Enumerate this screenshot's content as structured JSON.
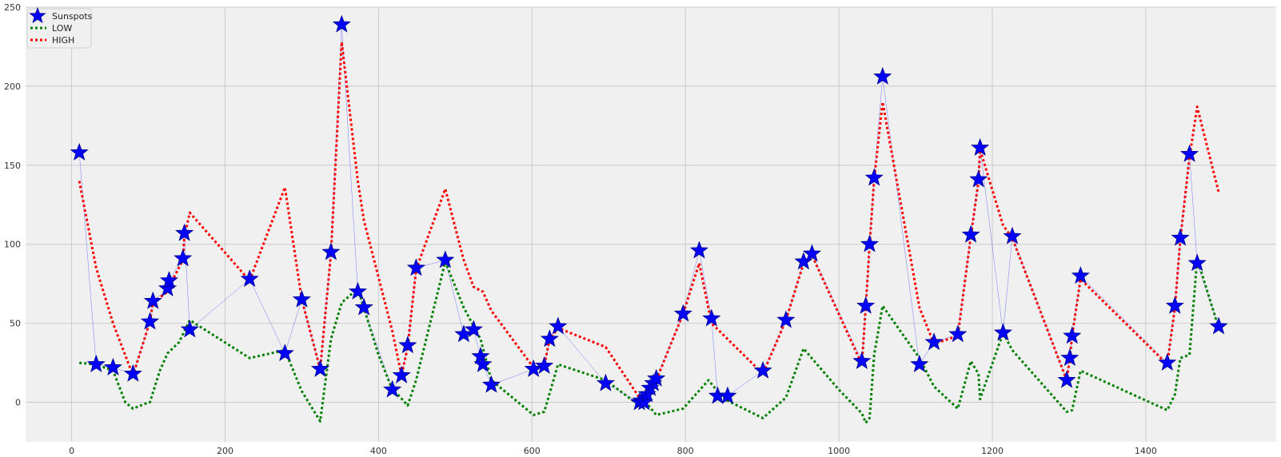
{
  "chart_data": {
    "type": "line",
    "title": "",
    "xlabel": "",
    "ylabel": "",
    "xlim": [
      -60,
      1570
    ],
    "ylim": [
      -25,
      250
    ],
    "x_ticks": [
      0,
      200,
      400,
      600,
      800,
      1000,
      1200,
      1400
    ],
    "y_ticks": [
      0,
      50,
      100,
      150,
      200,
      250
    ],
    "grid": true,
    "legend_position": "top-left",
    "series": [
      {
        "name": "Sunspots",
        "style": "star-markers-with-thin-line",
        "color": "#0000ff",
        "points": [
          [
            10,
            158
          ],
          [
            32,
            24
          ],
          [
            54,
            22
          ],
          [
            80,
            18
          ],
          [
            102,
            51
          ],
          [
            106,
            64
          ],
          [
            125,
            72
          ],
          [
            127,
            77
          ],
          [
            145,
            91
          ],
          [
            147,
            107
          ],
          [
            154,
            46
          ],
          [
            232,
            78
          ],
          [
            278,
            31
          ],
          [
            300,
            65
          ],
          [
            324,
            21
          ],
          [
            338,
            95
          ],
          [
            352,
            239
          ],
          [
            373,
            70
          ],
          [
            381,
            60
          ],
          [
            418,
            8
          ],
          [
            430,
            17
          ],
          [
            438,
            36
          ],
          [
            449,
            85
          ],
          [
            487,
            90
          ],
          [
            511,
            43
          ],
          [
            524,
            46
          ],
          [
            533,
            29
          ],
          [
            536,
            24
          ],
          [
            547,
            11
          ],
          [
            602,
            21
          ],
          [
            616,
            23
          ],
          [
            623,
            40
          ],
          [
            634,
            48
          ],
          [
            696,
            12
          ],
          [
            740,
            0
          ],
          [
            743,
            1
          ],
          [
            746,
            0
          ],
          [
            750,
            5
          ],
          [
            754,
            9
          ],
          [
            758,
            12
          ],
          [
            762,
            15
          ],
          [
            797,
            56
          ],
          [
            818,
            96
          ],
          [
            834,
            53
          ],
          [
            842,
            4
          ],
          [
            855,
            4
          ],
          [
            901,
            20
          ],
          [
            931,
            52
          ],
          [
            954,
            89
          ],
          [
            965,
            94
          ],
          [
            1030,
            26
          ],
          [
            1035,
            61
          ],
          [
            1040,
            100
          ],
          [
            1046,
            142
          ],
          [
            1057,
            206
          ],
          [
            1105,
            24
          ],
          [
            1124,
            38
          ],
          [
            1155,
            43
          ],
          [
            1172,
            106
          ],
          [
            1182,
            141
          ],
          [
            1184,
            161
          ],
          [
            1214,
            44
          ],
          [
            1226,
            105
          ],
          [
            1297,
            14
          ],
          [
            1301,
            28
          ],
          [
            1304,
            42
          ],
          [
            1315,
            80
          ],
          [
            1428,
            25
          ],
          [
            1438,
            61
          ],
          [
            1445,
            104
          ],
          [
            1457,
            157
          ],
          [
            1467,
            88
          ],
          [
            1495,
            48
          ]
        ]
      },
      {
        "name": "LOW",
        "style": "dotted",
        "color": "#008000",
        "points": [
          [
            10,
            25
          ],
          [
            32,
            24
          ],
          [
            54,
            20
          ],
          [
            70,
            0
          ],
          [
            80,
            -4
          ],
          [
            95,
            -1
          ],
          [
            102,
            0
          ],
          [
            115,
            20
          ],
          [
            125,
            31
          ],
          [
            140,
            38
          ],
          [
            154,
            52
          ],
          [
            232,
            28
          ],
          [
            278,
            33
          ],
          [
            300,
            7
          ],
          [
            324,
            -12
          ],
          [
            338,
            40
          ],
          [
            352,
            63
          ],
          [
            373,
            72
          ],
          [
            400,
            30
          ],
          [
            418,
            8
          ],
          [
            425,
            5
          ],
          [
            438,
            -2
          ],
          [
            449,
            14
          ],
          [
            487,
            89
          ],
          [
            511,
            60
          ],
          [
            533,
            40
          ],
          [
            547,
            14
          ],
          [
            602,
            -8
          ],
          [
            616,
            -6
          ],
          [
            634,
            24
          ],
          [
            696,
            14
          ],
          [
            740,
            -2
          ],
          [
            750,
            -1
          ],
          [
            762,
            -8
          ],
          [
            797,
            -4
          ],
          [
            830,
            14
          ],
          [
            842,
            7
          ],
          [
            855,
            1
          ],
          [
            901,
            -10
          ],
          [
            931,
            3
          ],
          [
            954,
            34
          ],
          [
            1000,
            8
          ],
          [
            1030,
            -7
          ],
          [
            1035,
            -13
          ],
          [
            1040,
            -10
          ],
          [
            1046,
            30
          ],
          [
            1057,
            61
          ],
          [
            1105,
            28
          ],
          [
            1124,
            10
          ],
          [
            1155,
            -4
          ],
          [
            1172,
            26
          ],
          [
            1182,
            18
          ],
          [
            1184,
            2
          ],
          [
            1214,
            44
          ],
          [
            1226,
            33
          ],
          [
            1297,
            -6
          ],
          [
            1304,
            -5
          ],
          [
            1315,
            20
          ],
          [
            1428,
            -5
          ],
          [
            1438,
            5
          ],
          [
            1445,
            28
          ],
          [
            1457,
            30
          ],
          [
            1467,
            91
          ],
          [
            1495,
            47
          ]
        ]
      },
      {
        "name": "HIGH",
        "style": "dotted",
        "color": "#ff0000",
        "points": [
          [
            10,
            140
          ],
          [
            32,
            85
          ],
          [
            54,
            50
          ],
          [
            80,
            17
          ],
          [
            102,
            51
          ],
          [
            106,
            63
          ],
          [
            125,
            70
          ],
          [
            127,
            73
          ],
          [
            145,
            90
          ],
          [
            147,
            105
          ],
          [
            154,
            120
          ],
          [
            232,
            77
          ],
          [
            278,
            136
          ],
          [
            300,
            65
          ],
          [
            324,
            21
          ],
          [
            338,
            94
          ],
          [
            352,
            228
          ],
          [
            373,
            140
          ],
          [
            381,
            115
          ],
          [
            418,
            45
          ],
          [
            430,
            17
          ],
          [
            438,
            35
          ],
          [
            449,
            84
          ],
          [
            487,
            135
          ],
          [
            511,
            90
          ],
          [
            524,
            73
          ],
          [
            536,
            70
          ],
          [
            547,
            58
          ],
          [
            602,
            22
          ],
          [
            616,
            23
          ],
          [
            623,
            40
          ],
          [
            634,
            47
          ],
          [
            696,
            35
          ],
          [
            740,
            3
          ],
          [
            750,
            5
          ],
          [
            762,
            14
          ],
          [
            797,
            56
          ],
          [
            818,
            88
          ],
          [
            834,
            50
          ],
          [
            855,
            40
          ],
          [
            901,
            18
          ],
          [
            931,
            52
          ],
          [
            954,
            88
          ],
          [
            965,
            93
          ],
          [
            1030,
            24
          ],
          [
            1035,
            60
          ],
          [
            1040,
            99
          ],
          [
            1046,
            141
          ],
          [
            1057,
            190
          ],
          [
            1105,
            60
          ],
          [
            1124,
            37
          ],
          [
            1155,
            42
          ],
          [
            1172,
            105
          ],
          [
            1182,
            140
          ],
          [
            1184,
            160
          ],
          [
            1214,
            112
          ],
          [
            1226,
            104
          ],
          [
            1297,
            14
          ],
          [
            1301,
            28
          ],
          [
            1304,
            42
          ],
          [
            1315,
            78
          ],
          [
            1428,
            24
          ],
          [
            1438,
            60
          ],
          [
            1445,
            103
          ],
          [
            1457,
            155
          ],
          [
            1467,
            187
          ],
          [
            1495,
            133
          ]
        ]
      }
    ]
  }
}
